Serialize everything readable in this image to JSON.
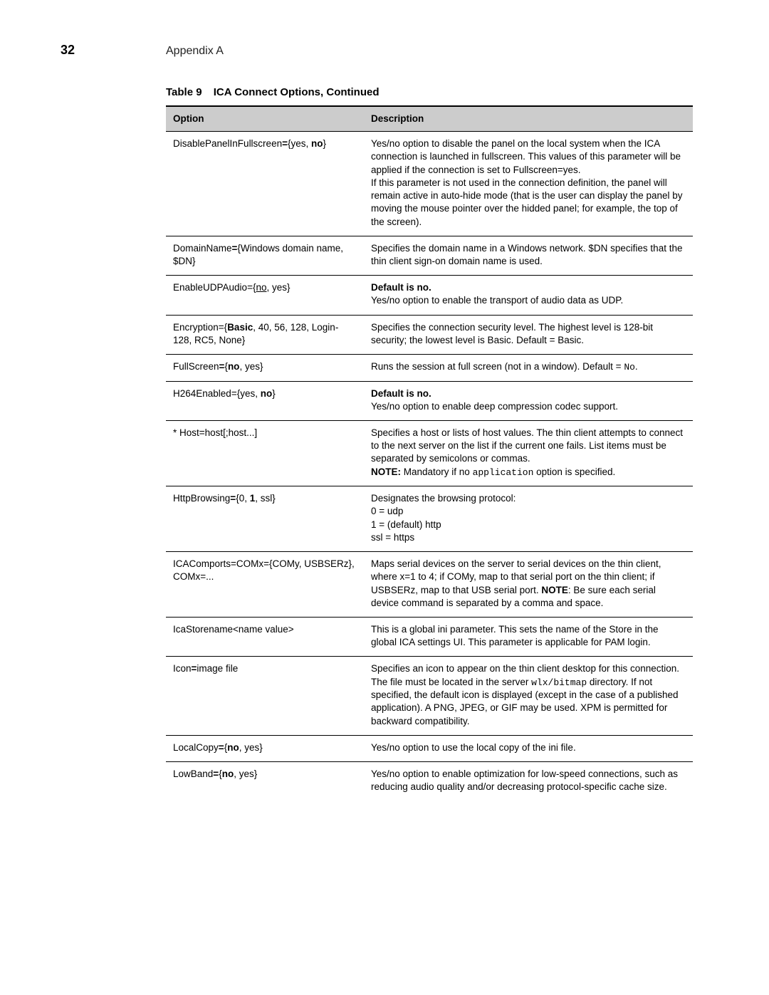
{
  "header": {
    "page_number": "32",
    "section": "Appendix A"
  },
  "table": {
    "title_prefix": "Table 9",
    "title_text": "ICA Connect Options, Continued",
    "columns": [
      "Option",
      "Description"
    ],
    "rows": [
      {
        "opt": {
          "pre": "DisablePanelInFullscreen",
          "eq_bold": true,
          "body": "={yes, ",
          "bold": "no",
          "post": "}"
        },
        "desc": {
          "text": "Yes/no option to disable the panel on the local system when the ICA connection is launched in fullscreen. This values of this parameter will be applied if the connection is set to Fullscreen=yes.\nIf this parameter is not used in the connection definition, the panel will remain active in auto-hide mode (that is the user can display the panel by moving the mouse pointer over the hidded panel; for example, the top of the screen)."
        }
      },
      {
        "opt": {
          "pre": "DomainName",
          "eq_bold": true,
          "body": "={Windows domain name, $DN}"
        },
        "desc": {
          "text": "Specifies the domain name in a Windows network. $DN specifies that the thin client sign-on domain name is used."
        }
      },
      {
        "opt": {
          "pre": "EnableUDPAudio={",
          "und": "no",
          "post": ", yes}"
        },
        "desc": {
          "bold_lead": "Default is no.",
          "text": "\nYes/no option to enable the transport of audio data as UDP."
        }
      },
      {
        "opt": {
          "pre": "Encryption={",
          "bold": "Basic",
          "post": ", 40, 56, 128, Login-128, RC5, None}"
        },
        "desc": {
          "text": "Specifies the connection security level. The highest level is 128-bit security; the lowest level is Basic. Default = Basic."
        }
      },
      {
        "opt": {
          "pre": "FullScreen",
          "eq_bold": true,
          "body": "={",
          "bold": "no",
          "post": ", yes}"
        },
        "desc": {
          "pretext": "Runs the session at full screen (not in a window). Default = ",
          "mono": "No",
          "post": "."
        }
      },
      {
        "opt": {
          "pre": "H264Enabled={yes, ",
          "bold": "no",
          "post": "}"
        },
        "desc": {
          "bold_lead": "Default is no.",
          "text": "\nYes/no option to enable deep compression codec support."
        }
      },
      {
        "opt": {
          "pre": "* Host=host[;host...]"
        },
        "desc": {
          "text": "Specifies a host or lists of host values. The thin client attempts to connect to the next server on the list if the current one fails. List items must be separated by semicolons or commas.\n",
          "bold_inline": "NOTE:",
          "text2": " Mandatory if no ",
          "mono": "application",
          "post": " option is specified."
        }
      },
      {
        "opt": {
          "pre": "HttpBrowsing",
          "eq_bold": true,
          "body": "={0, ",
          "bold": "1",
          "post": ", ssl}"
        },
        "desc": {
          "text": "Designates the browsing protocol:\n0 = udp\n1 = (default) http\nssl = https"
        }
      },
      {
        "opt": {
          "pre": "ICAComports=COMx={COMy, USBSERz}, COMx=..."
        },
        "desc": {
          "text": "Maps serial devices on the server to serial devices on the thin client, where x=1 to 4; if COMy, map to that serial port on the thin client; if USBSERz, map to that USB serial port. ",
          "bold_inline": "NOTE",
          "text2": ": Be sure each serial device command is separated by a comma and space."
        }
      },
      {
        "opt": {
          "pre": "IcaStorename<name value>"
        },
        "desc": {
          "text": "This is a global ini parameter. This sets the name of the Store in the global ICA settings UI. This parameter is applicable for PAM login."
        }
      },
      {
        "opt": {
          "pre": "Icon",
          "eq_bold": true,
          "body": "=image file"
        },
        "desc": {
          "text": "Specifies an icon to appear on the thin client desktop for this connection. The file must be located in the server ",
          "mono": "wlx/bitmap",
          "post": " directory. If not specified, the default icon is displayed (except in the case of a published application). A PNG, JPEG, or GIF may be used. XPM is permitted for backward compatibility."
        }
      },
      {
        "opt": {
          "pre": "LocalCopy",
          "eq_bold": true,
          "body": "={",
          "bold": "no",
          "post": ", yes}"
        },
        "desc": {
          "text": "Yes/no option to use the local copy of the ini file."
        }
      },
      {
        "opt": {
          "pre": "LowBand",
          "eq_bold": true,
          "body": "={",
          "bold": "no",
          "post": ", yes}"
        },
        "desc": {
          "text": "Yes/no option to enable optimization for low-speed connections, such as reducing audio quality and/or decreasing protocol-specific cache size."
        }
      }
    ]
  }
}
